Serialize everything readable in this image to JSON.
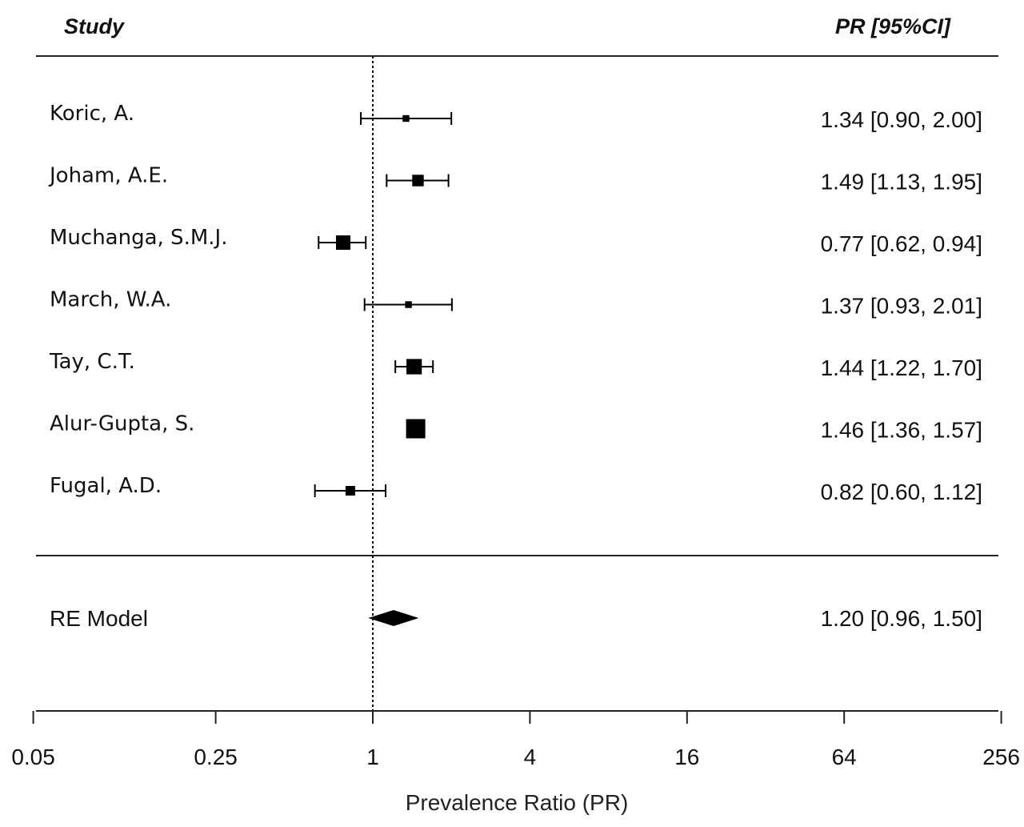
{
  "chart_data": {
    "type": "forest",
    "header": {
      "study": "Study",
      "estimate": "PR  [95%CI]"
    },
    "xlabel": "Prevalence Ratio (PR)",
    "x_scale": "log2",
    "xlim": [
      0.05,
      256
    ],
    "reference_line": 1,
    "ticks": [
      "0.05",
      "0.25",
      "1",
      "4",
      "16",
      "64",
      "256"
    ],
    "studies": [
      {
        "name": "Koric, A.",
        "pr": 1.34,
        "lower": 0.9,
        "upper": 2.0,
        "text": "1.34 [0.90, 2.00]",
        "weight": 0.35
      },
      {
        "name": "Joham, A.E.",
        "pr": 1.49,
        "lower": 1.13,
        "upper": 1.95,
        "text": "1.49 [1.13, 1.95]",
        "weight": 0.6
      },
      {
        "name": "Muchanga, S.M.J.",
        "pr": 0.77,
        "lower": 0.62,
        "upper": 0.94,
        "text": "0.77 [0.62, 0.94]",
        "weight": 0.75
      },
      {
        "name": "March, W.A.",
        "pr": 1.37,
        "lower": 0.93,
        "upper": 2.01,
        "text": "1.37 [0.93, 2.01]",
        "weight": 0.35
      },
      {
        "name": "Tay, C.T.",
        "pr": 1.44,
        "lower": 1.22,
        "upper": 1.7,
        "text": "1.44 [1.22, 1.70]",
        "weight": 0.8
      },
      {
        "name": "Alur-Gupta, S.",
        "pr": 1.46,
        "lower": 1.36,
        "upper": 1.57,
        "text": "1.46 [1.36, 1.57]",
        "weight": 1.0
      },
      {
        "name": "Fugal, A.D.",
        "pr": 0.82,
        "lower": 0.6,
        "upper": 1.12,
        "text": "0.82 [0.60, 1.12]",
        "weight": 0.5
      }
    ],
    "summary": {
      "name": "RE Model",
      "pr": 1.2,
      "lower": 0.96,
      "upper": 1.5,
      "text": "1.20 [0.96, 1.50]"
    },
    "colors": {
      "ink": "#000000",
      "text": "#111111"
    }
  }
}
